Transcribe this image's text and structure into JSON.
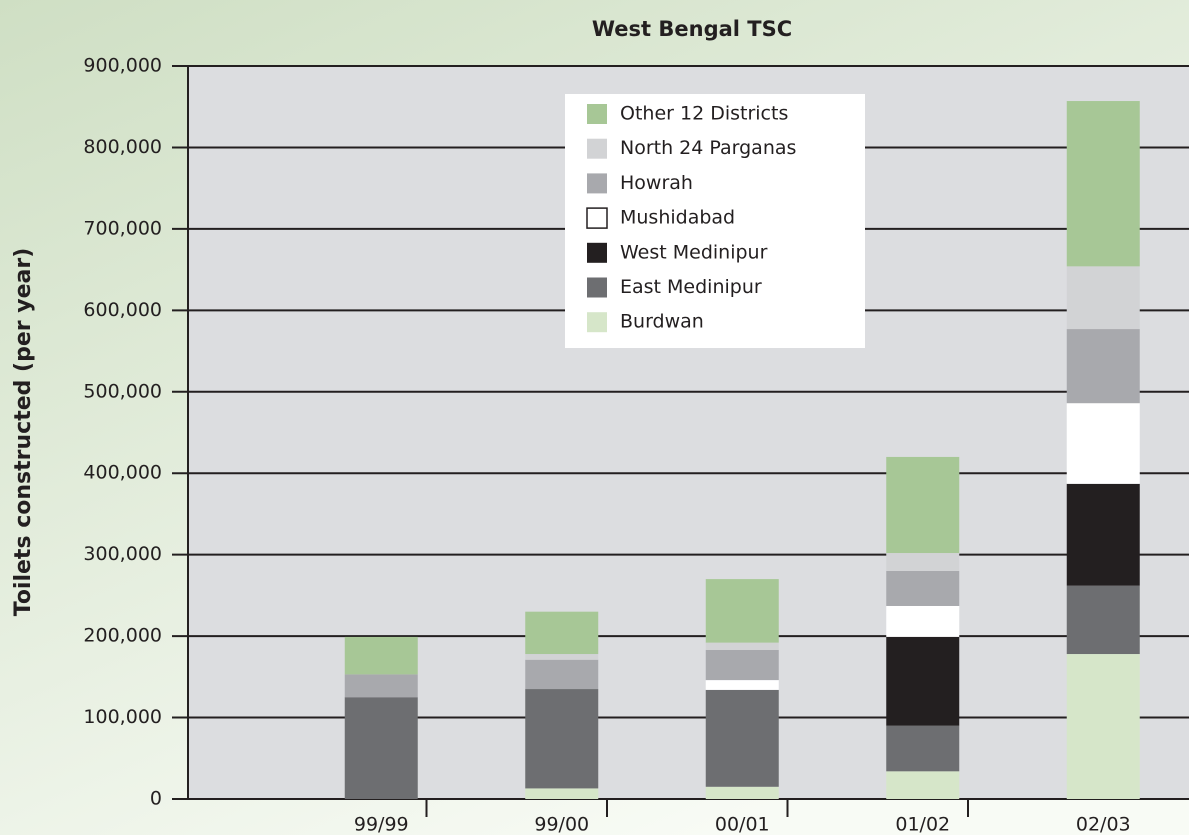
{
  "chart_data": {
    "type": "stacked_bar",
    "title": "West Bengal TSC",
    "y_label": "Toilets constructed (per year)",
    "categories": [
      "99/99",
      "99/00",
      "00/01",
      "01/02",
      "02/03"
    ],
    "series": [
      {
        "name": "Burdwan",
        "color": "#d6e6c9",
        "values": [
          0,
          13000,
          15000,
          34000,
          178000
        ]
      },
      {
        "name": "East Medinipur",
        "color": "#6d6e71",
        "values": [
          125000,
          122000,
          119000,
          56000,
          84000
        ]
      },
      {
        "name": "West Medinipur",
        "color": "#231f20",
        "values": [
          0,
          0,
          0,
          109000,
          125000
        ]
      },
      {
        "name": "Mushidabad",
        "color": "#ffffff",
        "values": [
          0,
          0,
          12000,
          38000,
          99000
        ]
      },
      {
        "name": "Howrah",
        "color": "#a8a9ad",
        "values": [
          28000,
          36000,
          37000,
          43000,
          91000
        ]
      },
      {
        "name": "North 24 Parganas",
        "color": "#d2d3d5",
        "values": [
          0,
          7000,
          9000,
          22000,
          77000
        ]
      },
      {
        "name": "Other 12 Districts",
        "color": "#a7c796",
        "values": [
          46000,
          52000,
          78000,
          118000,
          203000
        ]
      }
    ],
    "ylim": [
      0,
      900000
    ],
    "yticks": [
      0,
      {
        "value": 100000,
        "label": "100,000"
      },
      {
        "value": 200000,
        "label": "200,000"
      },
      {
        "value": 300000,
        "label": "300,000"
      },
      {
        "value": 400000,
        "label": "400,000"
      },
      {
        "value": 500000,
        "label": "500,000"
      },
      {
        "value": 600000,
        "label": "600,000"
      },
      {
        "value": 700000,
        "label": "700,000"
      },
      {
        "value": 800000,
        "label": "800,000"
      },
      {
        "value": 900000,
        "label": "900,000"
      }
    ],
    "grid": true,
    "legend": "top"
  }
}
